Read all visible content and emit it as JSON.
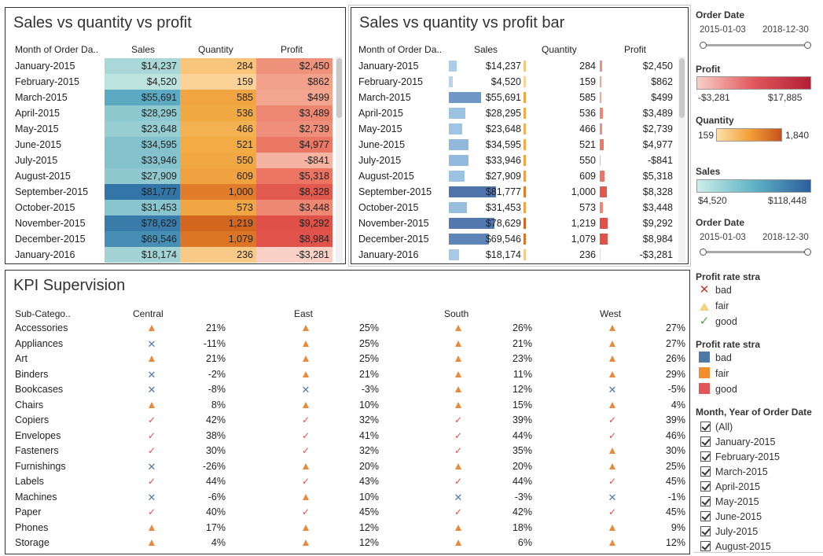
{
  "panel1": {
    "title": "Sales vs quantity vs profit",
    "headers": {
      "month": "Month of Order Da..",
      "sales": "Sales",
      "quantity": "Quantity",
      "profit": "Profit"
    }
  },
  "panel2": {
    "title": "Sales  vs quantity vs profit bar",
    "headers": {
      "month": "Month of Order Da..",
      "sales": "Sales",
      "quantity": "Quantity",
      "profit": "Profit"
    }
  },
  "rows": [
    {
      "month": "January-2015",
      "sales": "$14,237",
      "sales_val": 14237,
      "qty": "284",
      "qty_val": 284,
      "profit": "$2,450",
      "profit_val": 2450
    },
    {
      "month": "February-2015",
      "sales": "$4,520",
      "sales_val": 4520,
      "qty": "159",
      "qty_val": 159,
      "profit": "$862",
      "profit_val": 862
    },
    {
      "month": "March-2015",
      "sales": "$55,691",
      "sales_val": 55691,
      "qty": "585",
      "qty_val": 585,
      "profit": "$499",
      "profit_val": 499
    },
    {
      "month": "April-2015",
      "sales": "$28,295",
      "sales_val": 28295,
      "qty": "536",
      "qty_val": 536,
      "profit": "$3,489",
      "profit_val": 3489
    },
    {
      "month": "May-2015",
      "sales": "$23,648",
      "sales_val": 23648,
      "qty": "466",
      "qty_val": 466,
      "profit": "$2,739",
      "profit_val": 2739
    },
    {
      "month": "June-2015",
      "sales": "$34,595",
      "sales_val": 34595,
      "qty": "521",
      "qty_val": 521,
      "profit": "$4,977",
      "profit_val": 4977
    },
    {
      "month": "July-2015",
      "sales": "$33,946",
      "sales_val": 33946,
      "qty": "550",
      "qty_val": 550,
      "profit": "-$841",
      "profit_val": -841
    },
    {
      "month": "August-2015",
      "sales": "$27,909",
      "sales_val": 27909,
      "qty": "609",
      "qty_val": 609,
      "profit": "$5,318",
      "profit_val": 5318
    },
    {
      "month": "September-2015",
      "sales": "$81,777",
      "sales_val": 81777,
      "qty": "1,000",
      "qty_val": 1000,
      "profit": "$8,328",
      "profit_val": 8328
    },
    {
      "month": "October-2015",
      "sales": "$31,453",
      "sales_val": 31453,
      "qty": "573",
      "qty_val": 573,
      "profit": "$3,448",
      "profit_val": 3448
    },
    {
      "month": "November-2015",
      "sales": "$78,629",
      "sales_val": 78629,
      "qty": "1,219",
      "qty_val": 1219,
      "profit": "$9,292",
      "profit_val": 9292
    },
    {
      "month": "December-2015",
      "sales": "$69,546",
      "sales_val": 69546,
      "qty": "1,079",
      "qty_val": 1079,
      "profit": "$8,984",
      "profit_val": 8984
    },
    {
      "month": "January-2016",
      "sales": "$18,174",
      "sales_val": 18174,
      "qty": "236",
      "qty_val": 236,
      "profit": "-$3,281",
      "profit_val": -3281
    }
  ],
  "kpi": {
    "title": "KPI Supervision",
    "headers": {
      "subcat": "Sub-Catego..",
      "central": "Central",
      "east": "East",
      "south": "South",
      "west": "West"
    },
    "rows": [
      {
        "name": "Accessories",
        "c": [
          "fair",
          "21%"
        ],
        "e": [
          "fair",
          "25%"
        ],
        "s": [
          "fair",
          "26%"
        ],
        "w": [
          "fair",
          "27%"
        ]
      },
      {
        "name": "Appliances",
        "c": [
          "bad",
          "-11%"
        ],
        "e": [
          "fair",
          "25%"
        ],
        "s": [
          "fair",
          "21%"
        ],
        "w": [
          "fair",
          "27%"
        ]
      },
      {
        "name": "Art",
        "c": [
          "fair",
          "21%"
        ],
        "e": [
          "fair",
          "25%"
        ],
        "s": [
          "fair",
          "23%"
        ],
        "w": [
          "fair",
          "26%"
        ]
      },
      {
        "name": "Binders",
        "c": [
          "bad",
          "-2%"
        ],
        "e": [
          "fair",
          "21%"
        ],
        "s": [
          "fair",
          "11%"
        ],
        "w": [
          "fair",
          "29%"
        ]
      },
      {
        "name": "Bookcases",
        "c": [
          "bad",
          "-8%"
        ],
        "e": [
          "bad",
          "-3%"
        ],
        "s": [
          "fair",
          "12%"
        ],
        "w": [
          "bad",
          "-5%"
        ]
      },
      {
        "name": "Chairs",
        "c": [
          "fair",
          "8%"
        ],
        "e": [
          "fair",
          "10%"
        ],
        "s": [
          "fair",
          "15%"
        ],
        "w": [
          "fair",
          "4%"
        ]
      },
      {
        "name": "Copiers",
        "c": [
          "good",
          "42%"
        ],
        "e": [
          "good",
          "32%"
        ],
        "s": [
          "good",
          "39%"
        ],
        "w": [
          "good",
          "39%"
        ]
      },
      {
        "name": "Envelopes",
        "c": [
          "good",
          "38%"
        ],
        "e": [
          "good",
          "41%"
        ],
        "s": [
          "good",
          "44%"
        ],
        "w": [
          "good",
          "46%"
        ]
      },
      {
        "name": "Fasteners",
        "c": [
          "good",
          "30%"
        ],
        "e": [
          "good",
          "32%"
        ],
        "s": [
          "good",
          "35%"
        ],
        "w": [
          "fair",
          "30%"
        ]
      },
      {
        "name": "Furnishings",
        "c": [
          "bad",
          "-26%"
        ],
        "e": [
          "fair",
          "20%"
        ],
        "s": [
          "fair",
          "20%"
        ],
        "w": [
          "fair",
          "25%"
        ]
      },
      {
        "name": "Labels",
        "c": [
          "good",
          "44%"
        ],
        "e": [
          "good",
          "43%"
        ],
        "s": [
          "good",
          "44%"
        ],
        "w": [
          "good",
          "45%"
        ]
      },
      {
        "name": "Machines",
        "c": [
          "bad",
          "-6%"
        ],
        "e": [
          "fair",
          "10%"
        ],
        "s": [
          "bad",
          "-3%"
        ],
        "w": [
          "bad",
          "-1%"
        ]
      },
      {
        "name": "Paper",
        "c": [
          "good",
          "40%"
        ],
        "e": [
          "good",
          "45%"
        ],
        "s": [
          "good",
          "42%"
        ],
        "w": [
          "good",
          "45%"
        ]
      },
      {
        "name": "Phones",
        "c": [
          "fair",
          "17%"
        ],
        "e": [
          "fair",
          "12%"
        ],
        "s": [
          "fair",
          "18%"
        ],
        "w": [
          "fair",
          "9%"
        ]
      },
      {
        "name": "Storage",
        "c": [
          "fair",
          "4%"
        ],
        "e": [
          "fair",
          "12%"
        ],
        "s": [
          "fair",
          "6%"
        ],
        "w": [
          "fair",
          "12%"
        ]
      }
    ]
  },
  "sidebar": {
    "order_date_1": {
      "title": "Order Date",
      "start": "2015-01-03",
      "end": "2018-12-30"
    },
    "profit": {
      "title": "Profit",
      "min": "-$3,281",
      "max": "$17,885"
    },
    "quantity": {
      "title": "Quantity",
      "min": "159",
      "max": "1,840"
    },
    "sales": {
      "title": "Sales",
      "min": "$4,520",
      "max": "$118,448"
    },
    "order_date_2": {
      "title": "Order Date",
      "start": "2015-01-03",
      "end": "2018-12-30"
    },
    "profit_rate_shape": {
      "title": "Profit rate stra",
      "items": [
        "bad",
        "fair",
        "good"
      ]
    },
    "profit_rate_color": {
      "title": "Profit rate stra",
      "items": [
        "bad",
        "fair",
        "good"
      ]
    },
    "month_filter": {
      "title": "Month, Year of Order Date",
      "items": [
        "(All)",
        "January-2015",
        "February-2015",
        "March-2015",
        "April-2015",
        "May-2015",
        "June-2015",
        "July-2015",
        "August-2015"
      ]
    }
  },
  "colors": {
    "bad": "#4e79a7",
    "fair": "#f28e2b",
    "good": "#e15759",
    "check": "#59a14f"
  }
}
